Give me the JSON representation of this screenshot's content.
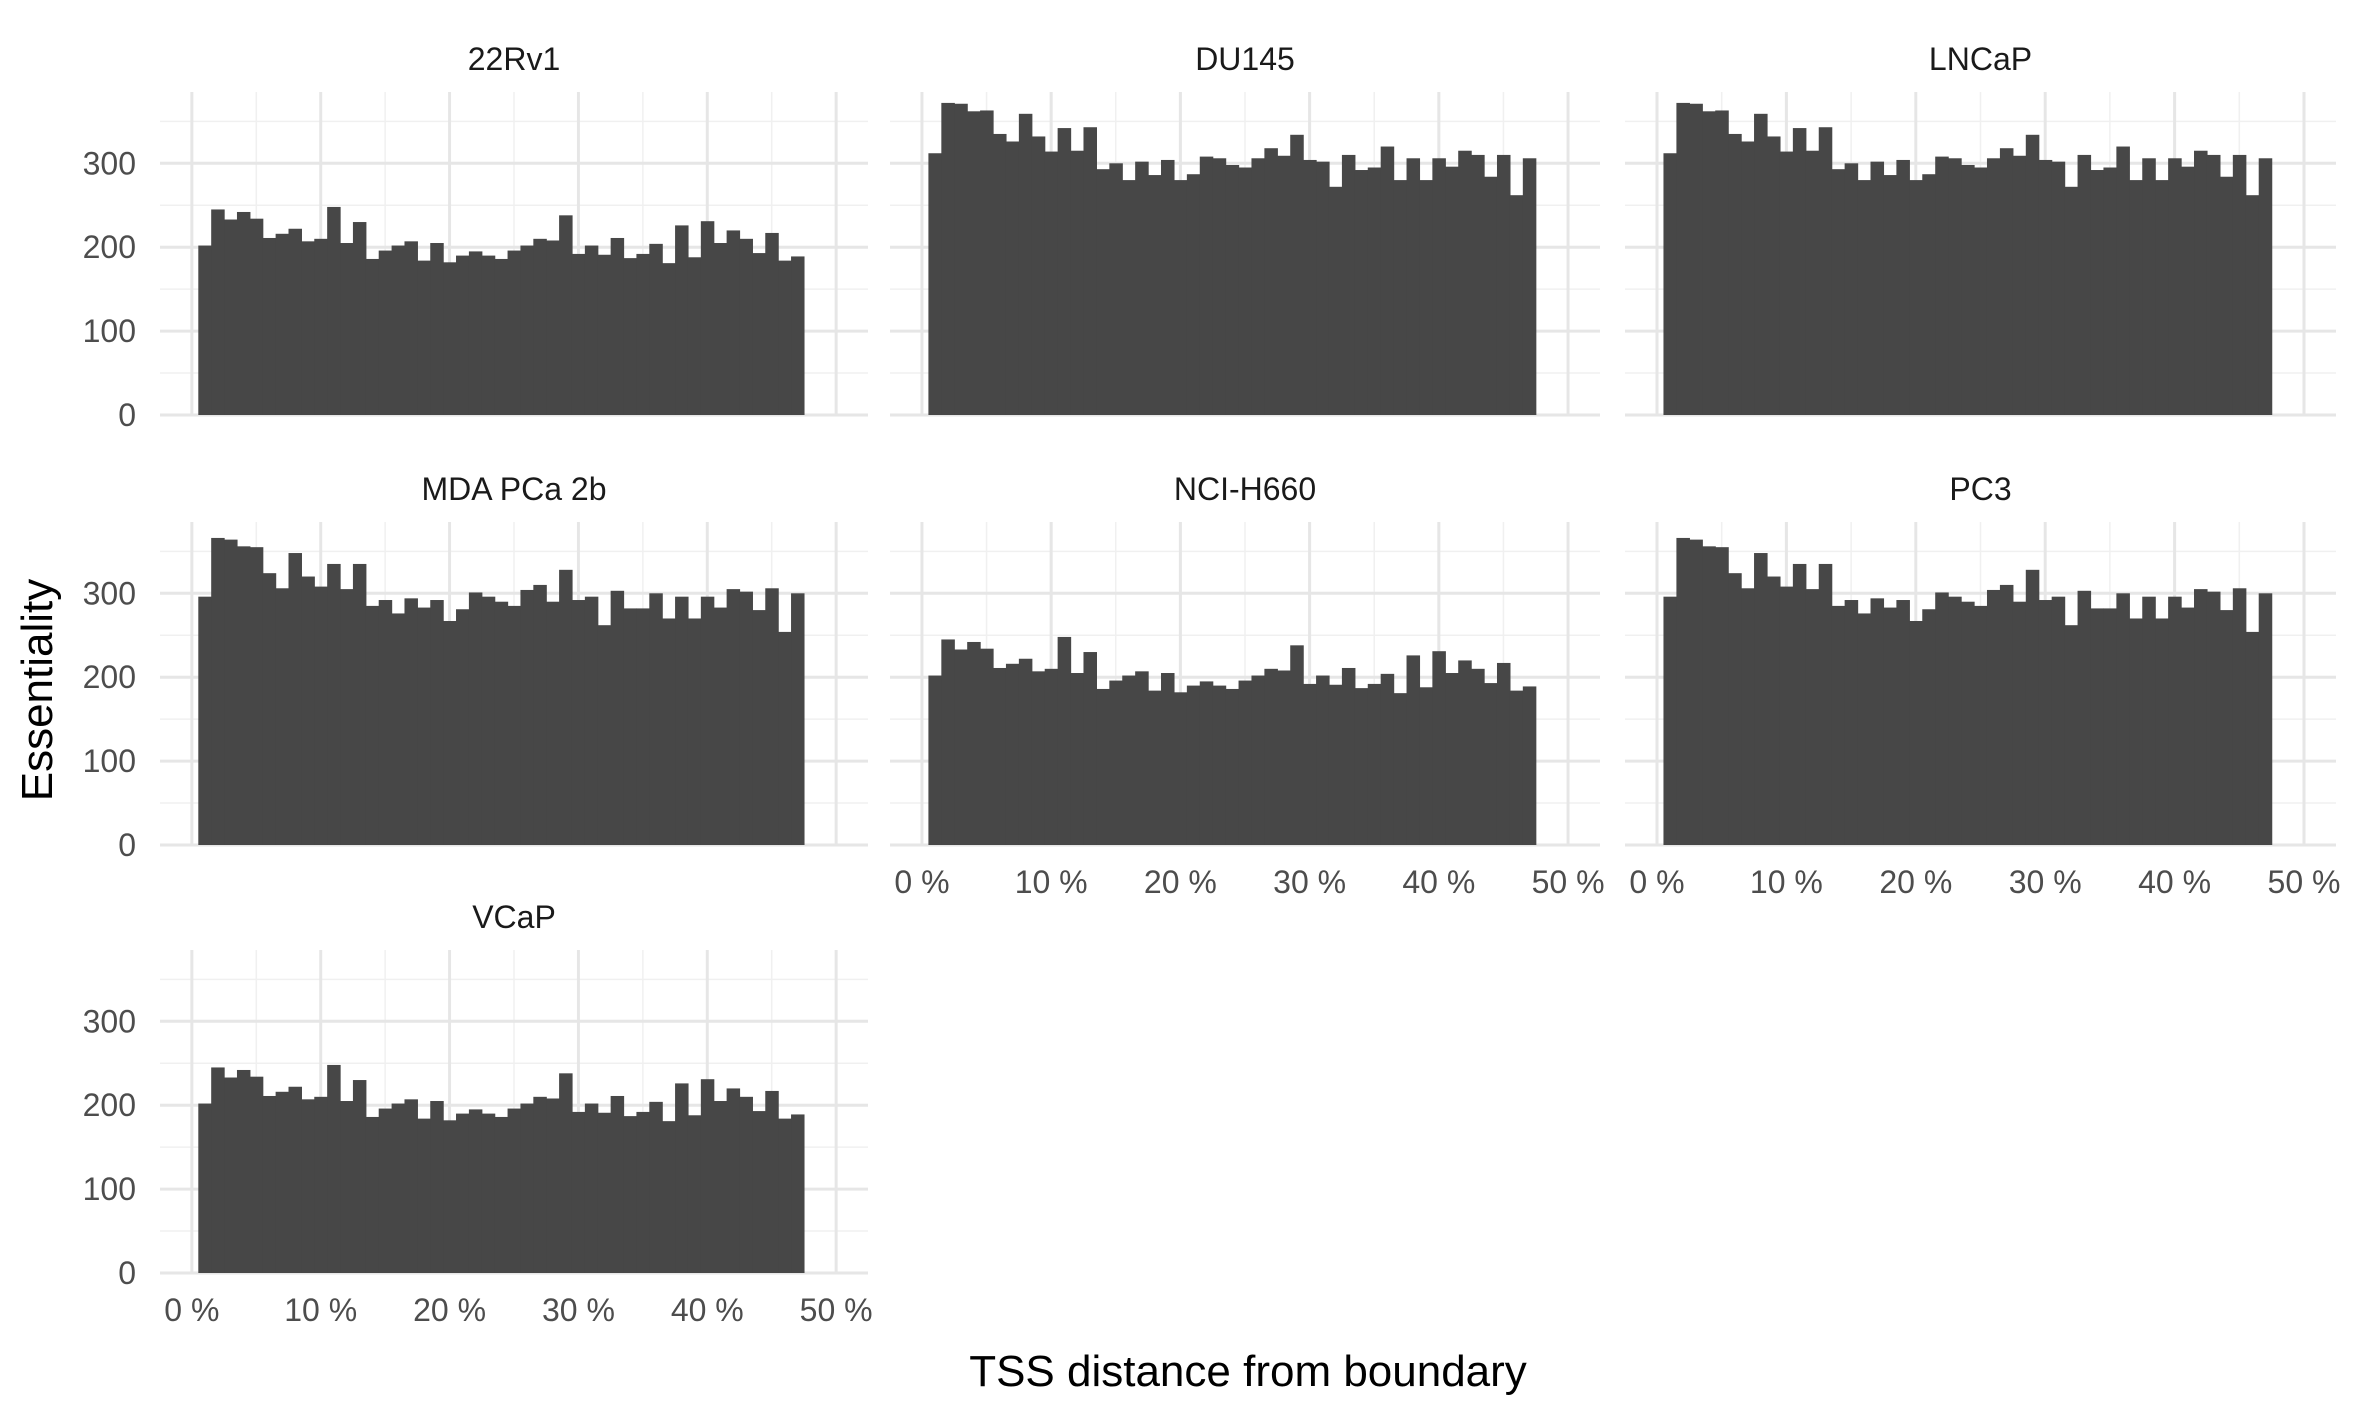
{
  "chart_data": {
    "type": "bar",
    "xlabel": "TSS distance from boundary",
    "ylabel": "Essentiality",
    "x_ticks": [
      "0 %",
      "10 %",
      "20 %",
      "30 %",
      "40 %",
      "50 %"
    ],
    "x_range": [
      0,
      50
    ],
    "y_ticks": [
      "0",
      "100",
      "200",
      "300"
    ],
    "ylim": [
      0,
      385
    ],
    "bin_width": 1,
    "bin_start": 0.5,
    "grid": true,
    "bar_color": "#474747",
    "panels": [
      {
        "name": "22Rv1",
        "values": [
          202,
          245,
          233,
          242,
          234,
          211,
          216,
          222,
          207,
          210,
          248,
          205,
          230,
          186,
          196,
          202,
          207,
          184,
          205,
          182,
          190,
          195,
          190,
          186,
          196,
          202,
          210,
          208,
          238,
          192,
          202,
          191,
          211,
          187,
          192,
          204,
          181,
          226,
          188,
          231,
          205,
          220,
          210,
          193,
          217,
          184,
          189
        ]
      },
      {
        "name": "DU145",
        "values": [
          312,
          372,
          371,
          362,
          363,
          335,
          326,
          359,
          332,
          314,
          342,
          315,
          343,
          293,
          300,
          280,
          302,
          286,
          304,
          280,
          287,
          308,
          306,
          298,
          295,
          306,
          318,
          309,
          334,
          304,
          302,
          272,
          310,
          292,
          295,
          320,
          280,
          306,
          280,
          306,
          296,
          315,
          310,
          284,
          310,
          262,
          306
        ]
      },
      {
        "name": "LNCaP",
        "values": [
          312,
          372,
          371,
          362,
          363,
          335,
          326,
          359,
          332,
          314,
          342,
          315,
          343,
          293,
          300,
          280,
          302,
          286,
          304,
          280,
          287,
          308,
          306,
          298,
          295,
          306,
          318,
          309,
          334,
          304,
          302,
          272,
          310,
          292,
          295,
          320,
          280,
          306,
          280,
          306,
          296,
          315,
          310,
          284,
          310,
          262,
          306
        ]
      },
      {
        "name": "MDA PCa 2b",
        "values": [
          296,
          366,
          364,
          356,
          355,
          324,
          306,
          348,
          320,
          308,
          335,
          305,
          335,
          285,
          292,
          276,
          294,
          283,
          292,
          267,
          281,
          301,
          296,
          290,
          285,
          304,
          310,
          290,
          328,
          292,
          296,
          262,
          303,
          282,
          282,
          300,
          270,
          296,
          270,
          296,
          283,
          305,
          302,
          280,
          306,
          254,
          300
        ]
      },
      {
        "name": "NCI-H660",
        "values": [
          202,
          245,
          233,
          242,
          234,
          211,
          216,
          222,
          207,
          210,
          248,
          205,
          230,
          186,
          196,
          202,
          207,
          184,
          205,
          182,
          190,
          195,
          190,
          186,
          196,
          202,
          210,
          208,
          238,
          192,
          202,
          191,
          211,
          187,
          192,
          204,
          181,
          226,
          188,
          231,
          205,
          220,
          210,
          193,
          217,
          184,
          189
        ]
      },
      {
        "name": "PC3",
        "values": [
          296,
          366,
          364,
          356,
          355,
          324,
          306,
          348,
          320,
          308,
          335,
          305,
          335,
          285,
          292,
          276,
          294,
          283,
          292,
          267,
          281,
          301,
          296,
          290,
          285,
          304,
          310,
          290,
          328,
          292,
          296,
          262,
          303,
          282,
          282,
          300,
          270,
          296,
          270,
          296,
          283,
          305,
          302,
          280,
          306,
          254,
          300
        ]
      },
      {
        "name": "VCaP",
        "values": [
          202,
          245,
          233,
          242,
          234,
          211,
          216,
          222,
          207,
          210,
          248,
          205,
          230,
          186,
          196,
          202,
          207,
          184,
          205,
          182,
          190,
          195,
          190,
          186,
          196,
          202,
          210,
          208,
          238,
          192,
          202,
          191,
          211,
          187,
          192,
          204,
          181,
          226,
          188,
          231,
          205,
          220,
          210,
          193,
          217,
          184,
          189
        ]
      }
    ]
  }
}
